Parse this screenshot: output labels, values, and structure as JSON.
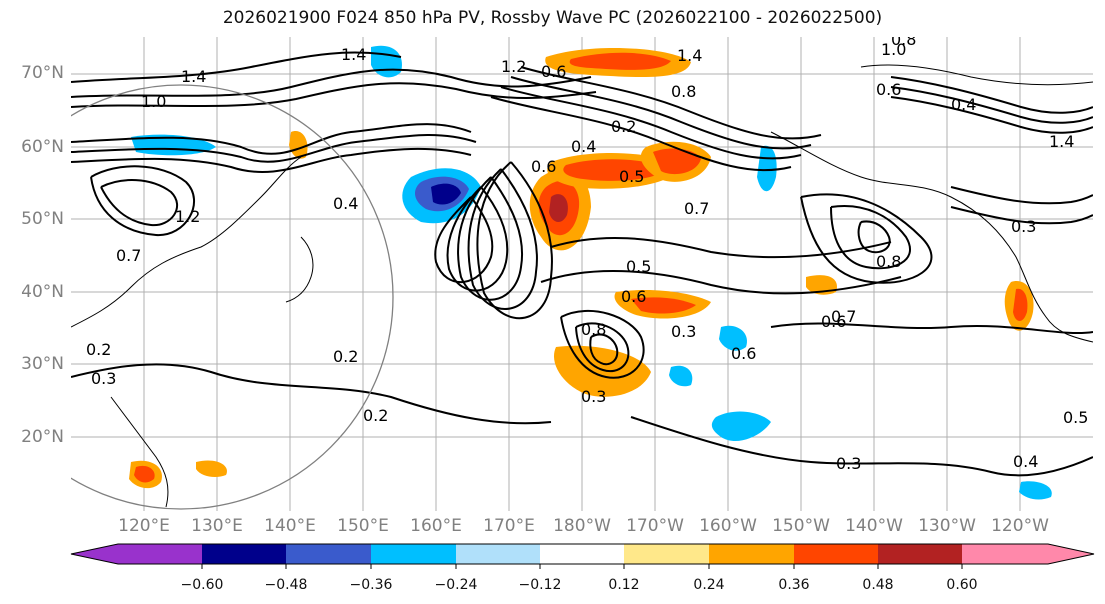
{
  "title": "2026021900 F024 850 hPa PV, Rossby Wave PC (2026022100 - 2026022500)",
  "map": {
    "projection": "equirectangular",
    "lat_labels": [
      "70°N",
      "60°N",
      "50°N",
      "40°N",
      "30°N",
      "20°N"
    ],
    "lon_labels": [
      "120°E",
      "130°E",
      "140°E",
      "150°E",
      "160°E",
      "170°E",
      "180°W",
      "170°W",
      "160°W",
      "150°W",
      "140°W",
      "130°W",
      "120°W"
    ],
    "gridlines": true,
    "contour_labels": [
      "1.4",
      "1.0",
      "0.8",
      "1.4",
      "1.2",
      "0.6",
      "1.4",
      "1.0",
      "0.8",
      "0.6",
      "0.4",
      "0.2",
      "0.4",
      "0.5",
      "0.7",
      "0.6",
      "1.4",
      "0.3",
      "0.8",
      "0.5",
      "0.6",
      "0.7",
      "0.6",
      "0.3",
      "0.6",
      "0.8",
      "0.3",
      "0.2",
      "0.3",
      "0.2",
      "0.2",
      "0.3",
      "0.4",
      "0.5",
      "1.2",
      "0.4",
      "0.7"
    ]
  },
  "colorbar": {
    "ticks": [
      "−0.60",
      "−0.48",
      "−0.36",
      "−0.24",
      "−0.12",
      "0.12",
      "0.24",
      "0.36",
      "0.48",
      "0.60"
    ],
    "colors": [
      "#9932cc",
      "#00008b",
      "#3a5bcc",
      "#00bfff",
      "#b0e0fa",
      "#ffffff",
      "#ffe88a",
      "#ffa500",
      "#ff4500",
      "#b22222",
      "#ff88aa"
    ]
  }
}
